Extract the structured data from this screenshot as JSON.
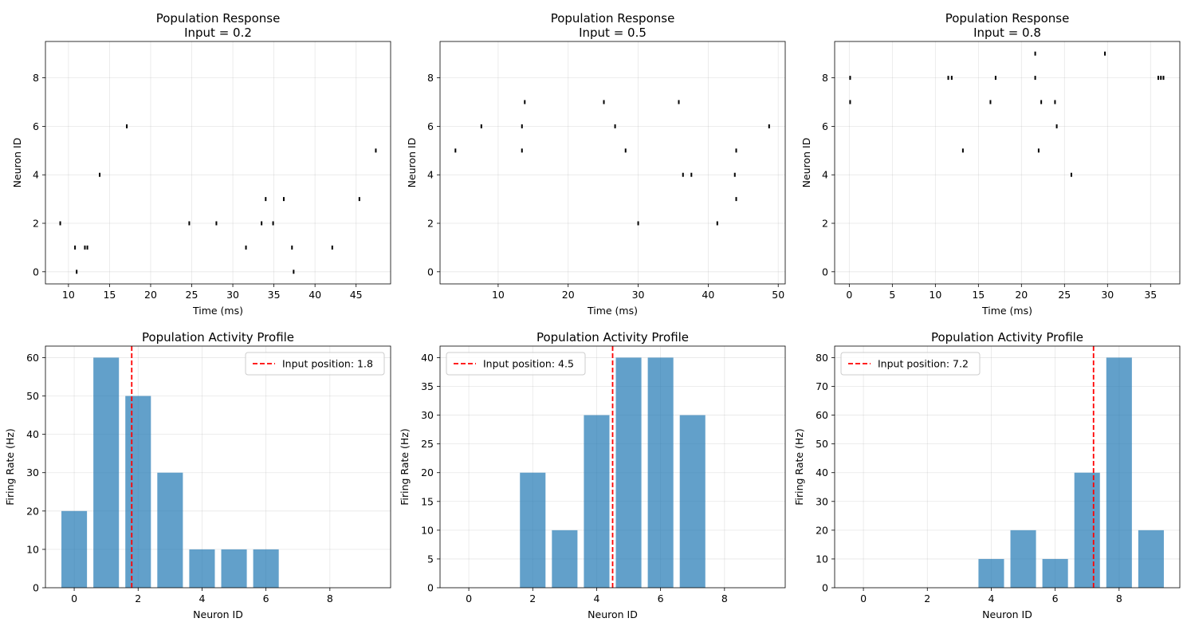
{
  "chart_data": [
    {
      "type": "scatter",
      "style": "raster",
      "title": "Population Response\nInput = 0.2",
      "xlabel": "Time (ms)",
      "ylabel": "Neuron ID",
      "xlim": [
        7.2,
        49.2
      ],
      "ylim": [
        -0.5,
        9.5
      ],
      "xticks": [
        10,
        15,
        20,
        25,
        30,
        35,
        40,
        45
      ],
      "yticks": [
        0,
        2,
        4,
        6,
        8
      ],
      "grid": true,
      "mark_color": "#000000",
      "spikes": [
        {
          "t": 9.0,
          "n": 2
        },
        {
          "t": 10.8,
          "n": 1
        },
        {
          "t": 11.0,
          "n": 0
        },
        {
          "t": 12.0,
          "n": 1
        },
        {
          "t": 12.3,
          "n": 1
        },
        {
          "t": 13.8,
          "n": 4
        },
        {
          "t": 17.1,
          "n": 6
        },
        {
          "t": 24.7,
          "n": 2
        },
        {
          "t": 28.0,
          "n": 2
        },
        {
          "t": 31.6,
          "n": 1
        },
        {
          "t": 33.5,
          "n": 2
        },
        {
          "t": 34.0,
          "n": 3
        },
        {
          "t": 34.9,
          "n": 2
        },
        {
          "t": 36.2,
          "n": 3
        },
        {
          "t": 37.2,
          "n": 1
        },
        {
          "t": 37.4,
          "n": 0
        },
        {
          "t": 42.1,
          "n": 1
        },
        {
          "t": 45.4,
          "n": 3
        },
        {
          "t": 47.4,
          "n": 5
        }
      ]
    },
    {
      "type": "scatter",
      "style": "raster",
      "title": "Population Response\nInput = 0.5",
      "xlabel": "Time (ms)",
      "ylabel": "Neuron ID",
      "xlim": [
        1.7,
        51.0
      ],
      "ylim": [
        -0.5,
        9.5
      ],
      "xticks": [
        10,
        20,
        30,
        40,
        50
      ],
      "yticks": [
        0,
        2,
        4,
        6,
        8
      ],
      "grid": true,
      "mark_color": "#000000",
      "spikes": [
        {
          "t": 3.9,
          "n": 5
        },
        {
          "t": 7.6,
          "n": 6
        },
        {
          "t": 13.4,
          "n": 6
        },
        {
          "t": 13.4,
          "n": 5
        },
        {
          "t": 13.8,
          "n": 7
        },
        {
          "t": 25.1,
          "n": 7
        },
        {
          "t": 26.7,
          "n": 6
        },
        {
          "t": 28.2,
          "n": 5
        },
        {
          "t": 30.0,
          "n": 2
        },
        {
          "t": 35.8,
          "n": 7
        },
        {
          "t": 36.4,
          "n": 4
        },
        {
          "t": 37.6,
          "n": 4
        },
        {
          "t": 41.3,
          "n": 2
        },
        {
          "t": 43.8,
          "n": 4
        },
        {
          "t": 44.0,
          "n": 5
        },
        {
          "t": 44.0,
          "n": 3
        },
        {
          "t": 48.7,
          "n": 6
        }
      ]
    },
    {
      "type": "scatter",
      "style": "raster",
      "title": "Population Response\nInput = 0.8",
      "xlabel": "Time (ms)",
      "ylabel": "Neuron ID",
      "xlim": [
        -1.7,
        38.4
      ],
      "ylim": [
        -0.5,
        9.5
      ],
      "xticks": [
        0,
        5,
        10,
        15,
        20,
        25,
        30,
        35
      ],
      "yticks": [
        0,
        2,
        4,
        6,
        8
      ],
      "grid": true,
      "mark_color": "#000000",
      "spikes": [
        {
          "t": 0.1,
          "n": 8
        },
        {
          "t": 0.1,
          "n": 7
        },
        {
          "t": 11.5,
          "n": 8
        },
        {
          "t": 11.9,
          "n": 8
        },
        {
          "t": 13.2,
          "n": 5
        },
        {
          "t": 16.4,
          "n": 7
        },
        {
          "t": 17.0,
          "n": 8
        },
        {
          "t": 21.6,
          "n": 9
        },
        {
          "t": 21.6,
          "n": 8
        },
        {
          "t": 22.0,
          "n": 5
        },
        {
          "t": 22.3,
          "n": 7
        },
        {
          "t": 23.9,
          "n": 7
        },
        {
          "t": 24.1,
          "n": 6
        },
        {
          "t": 25.8,
          "n": 4
        },
        {
          "t": 29.7,
          "n": 9
        },
        {
          "t": 35.9,
          "n": 8
        },
        {
          "t": 36.2,
          "n": 8
        },
        {
          "t": 36.5,
          "n": 8
        }
      ]
    },
    {
      "type": "bar",
      "title": "Population Activity Profile",
      "xlabel": "Neuron ID",
      "ylabel": "Firing Rate (Hz)",
      "categories": [
        0,
        1,
        2,
        3,
        4,
        5,
        6,
        7,
        8,
        9
      ],
      "values": [
        20,
        60,
        50,
        30,
        10,
        10,
        10,
        0,
        0,
        0
      ],
      "xlim": [
        -0.9,
        9.9
      ],
      "ylim": [
        0,
        63
      ],
      "xticks": [
        0,
        2,
        4,
        6,
        8
      ],
      "yticks": [
        0,
        10,
        20,
        30,
        40,
        50,
        60
      ],
      "bar_color": "#1f77b4",
      "bar_alpha": 0.7,
      "grid": true,
      "vline": {
        "x": 1.8,
        "color": "#ff0000",
        "style": "dashed",
        "label": "Input position: 1.8"
      },
      "legend_position": "upper right"
    },
    {
      "type": "bar",
      "title": "Population Activity Profile",
      "xlabel": "Neuron ID",
      "ylabel": "Firing Rate (Hz)",
      "categories": [
        0,
        1,
        2,
        3,
        4,
        5,
        6,
        7,
        8,
        9
      ],
      "values": [
        0,
        0,
        20,
        10,
        30,
        40,
        40,
        30,
        0,
        0
      ],
      "xlim": [
        -0.9,
        9.9
      ],
      "ylim": [
        0,
        42
      ],
      "xticks": [
        0,
        2,
        4,
        6,
        8
      ],
      "yticks": [
        0,
        5,
        10,
        15,
        20,
        25,
        30,
        35,
        40
      ],
      "bar_color": "#1f77b4",
      "bar_alpha": 0.7,
      "grid": true,
      "vline": {
        "x": 4.5,
        "color": "#ff0000",
        "style": "dashed",
        "label": "Input position: 4.5"
      },
      "legend_position": "upper left"
    },
    {
      "type": "bar",
      "title": "Population Activity Profile",
      "xlabel": "Neuron ID",
      "ylabel": "Firing Rate (Hz)",
      "categories": [
        0,
        1,
        2,
        3,
        4,
        5,
        6,
        7,
        8,
        9
      ],
      "values": [
        0,
        0,
        0,
        0,
        10,
        20,
        10,
        40,
        80,
        20
      ],
      "xlim": [
        -0.9,
        9.9
      ],
      "ylim": [
        0,
        84
      ],
      "xticks": [
        0,
        2,
        4,
        6,
        8
      ],
      "yticks": [
        0,
        10,
        20,
        30,
        40,
        50,
        60,
        70,
        80
      ],
      "bar_color": "#1f77b4",
      "bar_alpha": 0.7,
      "grid": true,
      "vline": {
        "x": 7.2,
        "color": "#ff0000",
        "style": "dashed",
        "label": "Input position: 7.2"
      },
      "legend_position": "upper left"
    }
  ]
}
